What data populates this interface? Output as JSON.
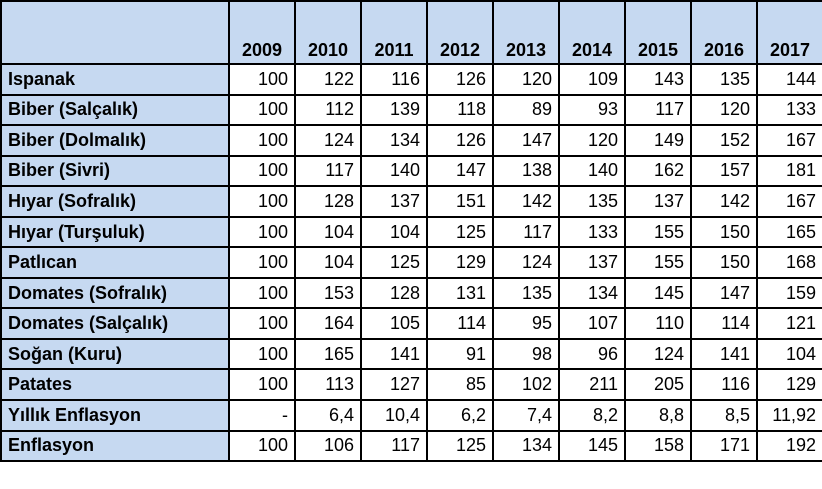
{
  "table": {
    "corner": "",
    "years": [
      "2009",
      "2010",
      "2011",
      "2012",
      "2013",
      "2014",
      "2015",
      "2016",
      "2017"
    ],
    "rows": [
      {
        "label": "Ispanak",
        "values": [
          "100",
          "122",
          "116",
          "126",
          "120",
          "109",
          "143",
          "135",
          "144"
        ]
      },
      {
        "label": "Biber (Salçalık)",
        "values": [
          "100",
          "112",
          "139",
          "118",
          "89",
          "93",
          "117",
          "120",
          "133"
        ]
      },
      {
        "label": "Biber (Dolmalık)",
        "values": [
          "100",
          "124",
          "134",
          "126",
          "147",
          "120",
          "149",
          "152",
          "167"
        ]
      },
      {
        "label": "Biber (Sivri)",
        "values": [
          "100",
          "117",
          "140",
          "147",
          "138",
          "140",
          "162",
          "157",
          "181"
        ]
      },
      {
        "label": "Hıyar (Sofralık)",
        "values": [
          "100",
          "128",
          "137",
          "151",
          "142",
          "135",
          "137",
          "142",
          "167"
        ]
      },
      {
        "label": "Hıyar (Turşuluk)",
        "values": [
          "100",
          "104",
          "104",
          "125",
          "117",
          "133",
          "155",
          "150",
          "165"
        ]
      },
      {
        "label": "Patlıcan",
        "values": [
          "100",
          "104",
          "125",
          "129",
          "124",
          "137",
          "155",
          "150",
          "168"
        ]
      },
      {
        "label": "Domates (Sofralık)",
        "values": [
          "100",
          "153",
          "128",
          "131",
          "135",
          "134",
          "145",
          "147",
          "159"
        ]
      },
      {
        "label": "Domates (Salçalık)",
        "values": [
          "100",
          "164",
          "105",
          "114",
          "95",
          "107",
          "110",
          "114",
          "121"
        ]
      },
      {
        "label": "Soğan (Kuru)",
        "values": [
          "100",
          "165",
          "141",
          "91",
          "98",
          "96",
          "124",
          "141",
          "104"
        ]
      },
      {
        "label": "Patates",
        "values": [
          "100",
          "113",
          "127",
          "85",
          "102",
          "211",
          "205",
          "116",
          "129"
        ]
      },
      {
        "label": "Yıllık Enflasyon",
        "values": [
          "-",
          "6,4",
          "10,4",
          "6,2",
          "7,4",
          "8,2",
          "8,8",
          "8,5",
          "11,92"
        ]
      },
      {
        "label": "Enflasyon",
        "values": [
          "100",
          "106",
          "117",
          "125",
          "134",
          "145",
          "158",
          "171",
          "192"
        ]
      }
    ]
  }
}
